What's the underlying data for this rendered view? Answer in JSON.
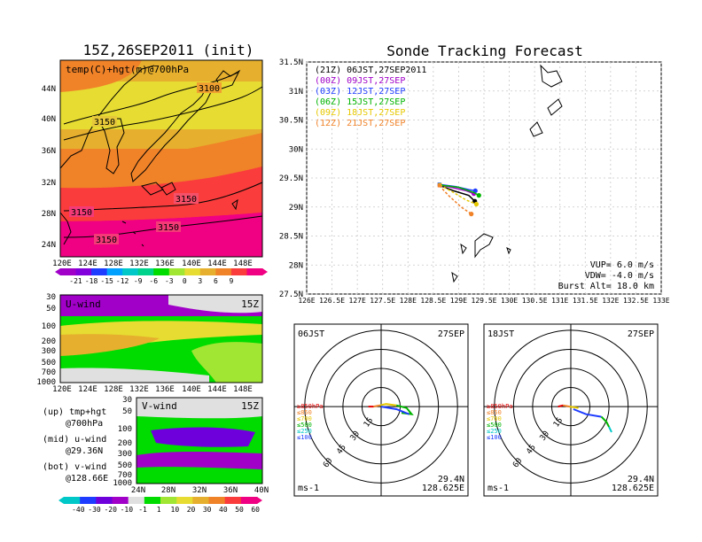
{
  "colors": {
    "temp_scale": [
      "#a000c8",
      "#8200dc",
      "#1e3cff",
      "#00a0ff",
      "#00c8c8",
      "#00d28c",
      "#00dc00",
      "#a0e632",
      "#e6dc32",
      "#e6af2d",
      "#f08228",
      "#fa3c3c",
      "#f00082"
    ],
    "wind_scale": [
      "#00c8c8",
      "#1e3cff",
      "#6e00dc",
      "#a000c8",
      "#e0e0e0",
      "#00dc00",
      "#a0e632",
      "#e6dc32",
      "#e6af2d",
      "#f08228",
      "#fa3c3c",
      "#f00082"
    ],
    "track": {
      "21Z": "#000000",
      "00Z": "#a000c8",
      "03Z": "#1e3cff",
      "06Z": "#00b400",
      "09Z": "#e6c800",
      "12Z": "#f08228"
    }
  },
  "temp_map": {
    "title": "15Z,26SEP2011 (init)",
    "label": "temp(C)+hgt(m)@700hPa",
    "lat_ticks": [
      "44N",
      "40N",
      "36N",
      "32N",
      "28N",
      "24N"
    ],
    "lon_ticks": [
      "120E",
      "124E",
      "128E",
      "132E",
      "136E",
      "140E",
      "144E",
      "148E"
    ],
    "contour_labels": [
      "3100",
      "3150",
      "3150",
      "3150",
      "3150",
      "3150"
    ],
    "colorbar_labels": [
      "-21",
      "-18",
      "-15",
      "-12",
      "-9",
      "-6",
      "-3",
      "0",
      "3",
      "6",
      "9"
    ]
  },
  "u_wind": {
    "label": "U-wind",
    "time": "15Z",
    "p_ticks": [
      "30",
      "50",
      "100",
      "200",
      "300",
      "500",
      "700",
      "1000"
    ],
    "lon_ticks": [
      "120E",
      "124E",
      "128E",
      "132E",
      "136E",
      "140E",
      "144E",
      "148E"
    ]
  },
  "v_wind": {
    "label": "V-wind",
    "time": "15Z",
    "p_ticks": [
      "30",
      "50",
      "100",
      "200",
      "300",
      "500",
      "700",
      "1000"
    ],
    "lat_ticks": [
      "24N",
      "28N",
      "32N",
      "36N",
      "40N"
    ],
    "colorbar_labels": [
      "-40",
      "-30",
      "-20",
      "-10",
      "-1",
      "1",
      "10",
      "20",
      "30",
      "40",
      "50",
      "60"
    ]
  },
  "notes": {
    "up_a": "(up) tmp+hgt",
    "up_b": "@700hPa",
    "mid_a": "(mid) u-wind",
    "mid_b": "@29.36N",
    "bot_a": "(bot) v-wind",
    "bot_b": "@128.66E"
  },
  "track_panel": {
    "title": "Sonde Tracking Forecast",
    "legend": [
      {
        "key": "21Z",
        "text": "(21Z) 06JST,27SEP2011"
      },
      {
        "key": "00Z",
        "text": "(00Z) 09JST,27SEP"
      },
      {
        "key": "03Z",
        "text": "(03Z) 12JST,27SEP"
      },
      {
        "key": "06Z",
        "text": "(06Z) 15JST,27SEP"
      },
      {
        "key": "09Z",
        "text": "(09Z) 18JST,27SEP"
      },
      {
        "key": "12Z",
        "text": "(12Z) 21JST,27SEP"
      }
    ],
    "lat_ticks": [
      "31.5N",
      "31N",
      "30.5N",
      "30N",
      "29.5N",
      "29N",
      "28.5N",
      "28N",
      "27.5N"
    ],
    "lon_ticks": [
      "126E",
      "126.5E",
      "127E",
      "127.5E",
      "128E",
      "128.5E",
      "129E",
      "129.5E",
      "130E",
      "130.5E",
      "131E",
      "131.5E",
      "132E",
      "132.5E",
      "133E"
    ],
    "params": [
      "VUP=  6.0 m/s",
      "VDW= -4.0 m/s",
      "Burst Alt= 18.0 km"
    ]
  },
  "chart_data": [
    {
      "type": "line",
      "title": "Sonde Tracking Forecast",
      "xlabel": "",
      "ylabel": "",
      "xlim": [
        126,
        133
      ],
      "ylim": [
        27.5,
        31.5
      ],
      "series": [
        {
          "name": "(21Z) 06JST,27SEP2011",
          "points": [
            [
              128.63,
              29.37
            ],
            [
              128.9,
              29.28
            ],
            [
              129.2,
              29.2
            ],
            [
              129.32,
              29.1
            ]
          ]
        },
        {
          "name": "(00Z) 09JST,27SEP",
          "points": [
            [
              128.63,
              29.38
            ],
            [
              128.9,
              29.33
            ],
            [
              129.15,
              29.28
            ],
            [
              129.3,
              29.23
            ]
          ]
        },
        {
          "name": "(03Z) 12JST,27SEP",
          "points": [
            [
              128.62,
              29.39
            ],
            [
              128.95,
              29.35
            ],
            [
              129.2,
              29.3
            ],
            [
              129.33,
              29.28
            ]
          ]
        },
        {
          "name": "(06Z) 15JST,27SEP",
          "points": [
            [
              128.63,
              29.38
            ],
            [
              129.0,
              29.34
            ],
            [
              129.3,
              29.25
            ],
            [
              129.4,
              29.2
            ]
          ]
        },
        {
          "name": "(09Z) 18JST,27SEP",
          "points": [
            [
              128.63,
              29.38
            ],
            [
              128.9,
              29.25
            ],
            [
              129.15,
              29.12
            ],
            [
              129.35,
              29.05
            ]
          ]
        },
        {
          "name": "(12Z) 21JST,27SEP",
          "points": [
            [
              128.62,
              29.37
            ],
            [
              128.8,
              29.2
            ],
            [
              129.05,
              29.0
            ],
            [
              129.25,
              28.88
            ]
          ]
        }
      ],
      "annotations": [
        "VUP=  6.0 m/s",
        "VDW= -4.0 m/s",
        "Burst Alt= 18.0 km"
      ]
    },
    {
      "type": "scatter",
      "title": "06JST 27SEP",
      "ring_labels": [
        "15",
        "30",
        "45",
        "60"
      ],
      "unit": "ms-1",
      "location": [
        "29.4N",
        "128.625E"
      ],
      "legend": [
        "≥850hPa",
        "≤850",
        "≤700",
        "≤500",
        "≤250",
        "≤100"
      ]
    },
    {
      "type": "scatter",
      "title": "18JST 27SEP",
      "ring_labels": [
        "15",
        "30",
        "45",
        "60"
      ],
      "unit": "ms-1",
      "location": [
        "29.4N",
        "128.625E"
      ],
      "legend": [
        "≥850hPa",
        "≤850",
        "≤700",
        "≤500",
        "≤250",
        "≤100"
      ]
    }
  ],
  "hodo1": {
    "time": "06JST",
    "date": "27SEP",
    "unit": "ms-1",
    "lat": "29.4N",
    "lon": "128.625E",
    "rings": [
      "15",
      "30",
      "45",
      "60"
    ]
  },
  "hodo2": {
    "time": "18JST",
    "date": "27SEP",
    "unit": "ms-1",
    "lat": "29.4N",
    "lon": "128.625E",
    "rings": [
      "15",
      "30",
      "45",
      "60"
    ]
  },
  "hodo_legend": [
    {
      "text": "≥850hPa",
      "color": "#e60000"
    },
    {
      "text": "≤850",
      "color": "#f08228"
    },
    {
      "text": "≤700",
      "color": "#e6c800"
    },
    {
      "text": "≤500",
      "color": "#00b400"
    },
    {
      "text": "≤250",
      "color": "#00c8c8"
    },
    {
      "text": "≤100",
      "color": "#1e3cff"
    }
  ]
}
